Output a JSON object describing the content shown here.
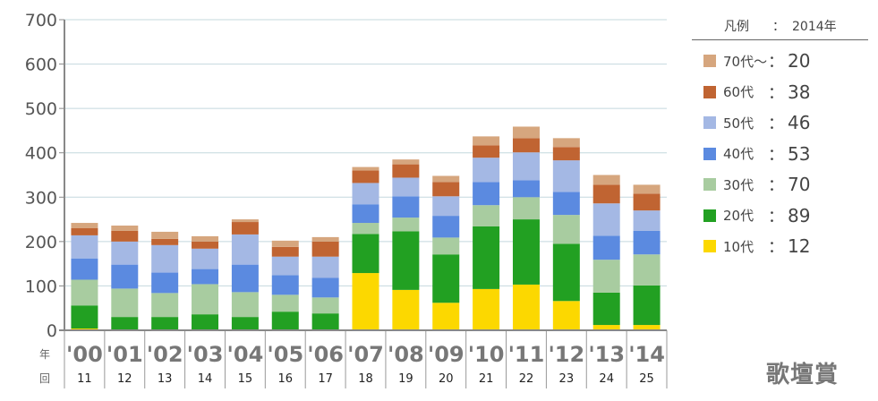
{
  "chart_data": {
    "type": "bar",
    "stacked": true,
    "ylim": [
      0,
      700
    ],
    "yticks": [
      "0",
      "100",
      "200",
      "300",
      "400",
      "500",
      "600",
      "700"
    ],
    "grid": true,
    "categories": [
      "'00",
      "'01",
      "'02",
      "'03",
      "'04",
      "'05",
      "'06",
      "'07",
      "'08",
      "'09",
      "'10",
      "'11",
      "'12",
      "'13",
      "'14"
    ],
    "rounds": [
      "11",
      "12",
      "13",
      "14",
      "15",
      "16",
      "17",
      "18",
      "19",
      "20",
      "21",
      "22",
      "23",
      "24",
      "25"
    ],
    "row_labels": {
      "year": "年",
      "round": "回"
    },
    "series": [
      {
        "name": "10代",
        "color": "#fcd800",
        "values": [
          4,
          0,
          0,
          0,
          0,
          0,
          0,
          129,
          91,
          62,
          93,
          103,
          66,
          12,
          12
        ]
      },
      {
        "name": "20代",
        "color": "#22a022",
        "values": [
          52,
          30,
          30,
          36,
          30,
          42,
          38,
          88,
          132,
          109,
          141,
          147,
          129,
          73,
          89
        ]
      },
      {
        "name": "30代",
        "color": "#a8cca0",
        "values": [
          58,
          64,
          54,
          68,
          56,
          38,
          36,
          25,
          31,
          38,
          48,
          50,
          65,
          74,
          70
        ]
      },
      {
        "name": "40代",
        "color": "#5b8ae0",
        "values": [
          48,
          54,
          46,
          34,
          62,
          44,
          44,
          42,
          48,
          49,
          52,
          38,
          52,
          54,
          53
        ]
      },
      {
        "name": "50代",
        "color": "#a4b8e4",
        "values": [
          52,
          52,
          62,
          46,
          68,
          42,
          48,
          48,
          42,
          44,
          55,
          63,
          71,
          73,
          46
        ]
      },
      {
        "name": "60代",
        "color": "#c06432",
        "values": [
          16,
          24,
          14,
          16,
          28,
          22,
          34,
          28,
          30,
          32,
          28,
          32,
          30,
          42,
          38
        ]
      },
      {
        "name": "70代～",
        "color": "#d6a67e",
        "values": [
          12,
          12,
          16,
          12,
          6,
          14,
          10,
          8,
          11,
          14,
          20,
          26,
          20,
          22,
          20
        ]
      }
    ],
    "legend": {
      "title": "凡例",
      "colon": "：",
      "year": "2014年",
      "placement": "right",
      "items": [
        {
          "label": "70代～",
          "value": "20",
          "color": "#d6a67e"
        },
        {
          "label": "60代",
          "value": "38",
          "color": "#c06432"
        },
        {
          "label": "50代",
          "value": "46",
          "color": "#a4b8e4"
        },
        {
          "label": "40代",
          "value": "53",
          "color": "#5b8ae0"
        },
        {
          "label": "30代",
          "value": "70",
          "color": "#a8cca0"
        },
        {
          "label": "20代",
          "value": "89",
          "color": "#22a022"
        },
        {
          "label": "10代",
          "value": "12",
          "color": "#fcd800"
        }
      ]
    }
  },
  "brand": "歌壇賞"
}
